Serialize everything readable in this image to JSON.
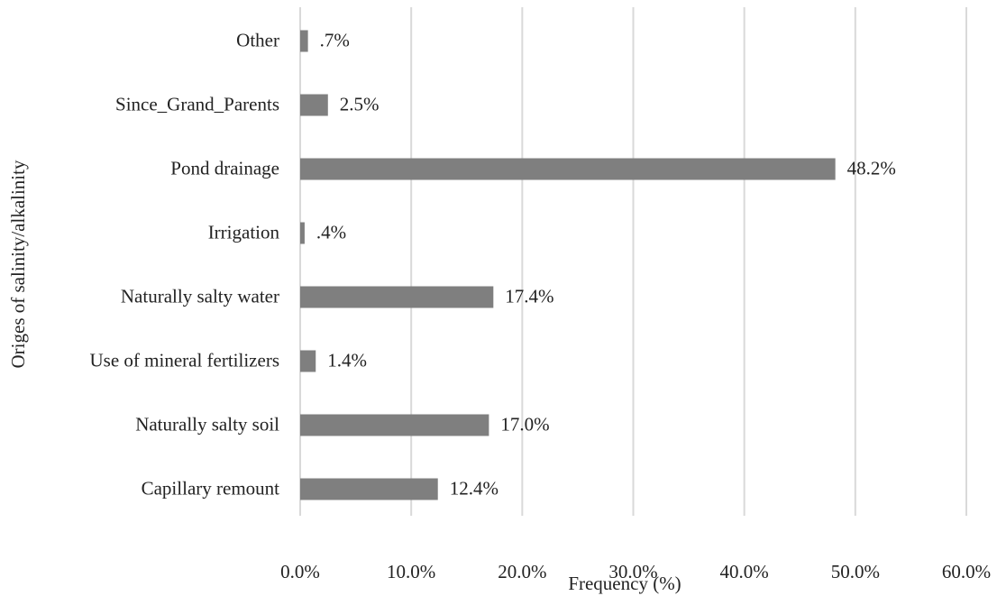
{
  "chart_data": {
    "type": "barh",
    "xlabel": "Frequency (%)",
    "ylabel": "Origes of salinity/alkalinity",
    "categories": [
      "Other",
      "Since_Grand_Parents",
      "Pond drainage",
      "Irrigation",
      "Naturally salty water",
      "Use of mineral fertilizers",
      "Naturally salty soil",
      "Capillary remount"
    ],
    "values": [
      0.7,
      2.5,
      48.2,
      0.4,
      17.4,
      1.4,
      17.0,
      12.4
    ],
    "value_labels": [
      ".7%",
      "2.5%",
      "48.2%",
      ".4%",
      "17.4%",
      "1.4%",
      "17.0%",
      "12.4%"
    ],
    "color": "#7f7f7f",
    "xlim": [
      0,
      60
    ],
    "xticks": [
      {
        "value": 0,
        "label": "0.0%"
      },
      {
        "value": 10,
        "label": "10.0%"
      },
      {
        "value": 20,
        "label": "20.0%"
      },
      {
        "value": 30,
        "label": "30.0%"
      },
      {
        "value": 40,
        "label": "40.0%"
      },
      {
        "value": 50,
        "label": "50.0%"
      },
      {
        "value": 60,
        "label": "60.0%"
      }
    ],
    "grid": true
  }
}
